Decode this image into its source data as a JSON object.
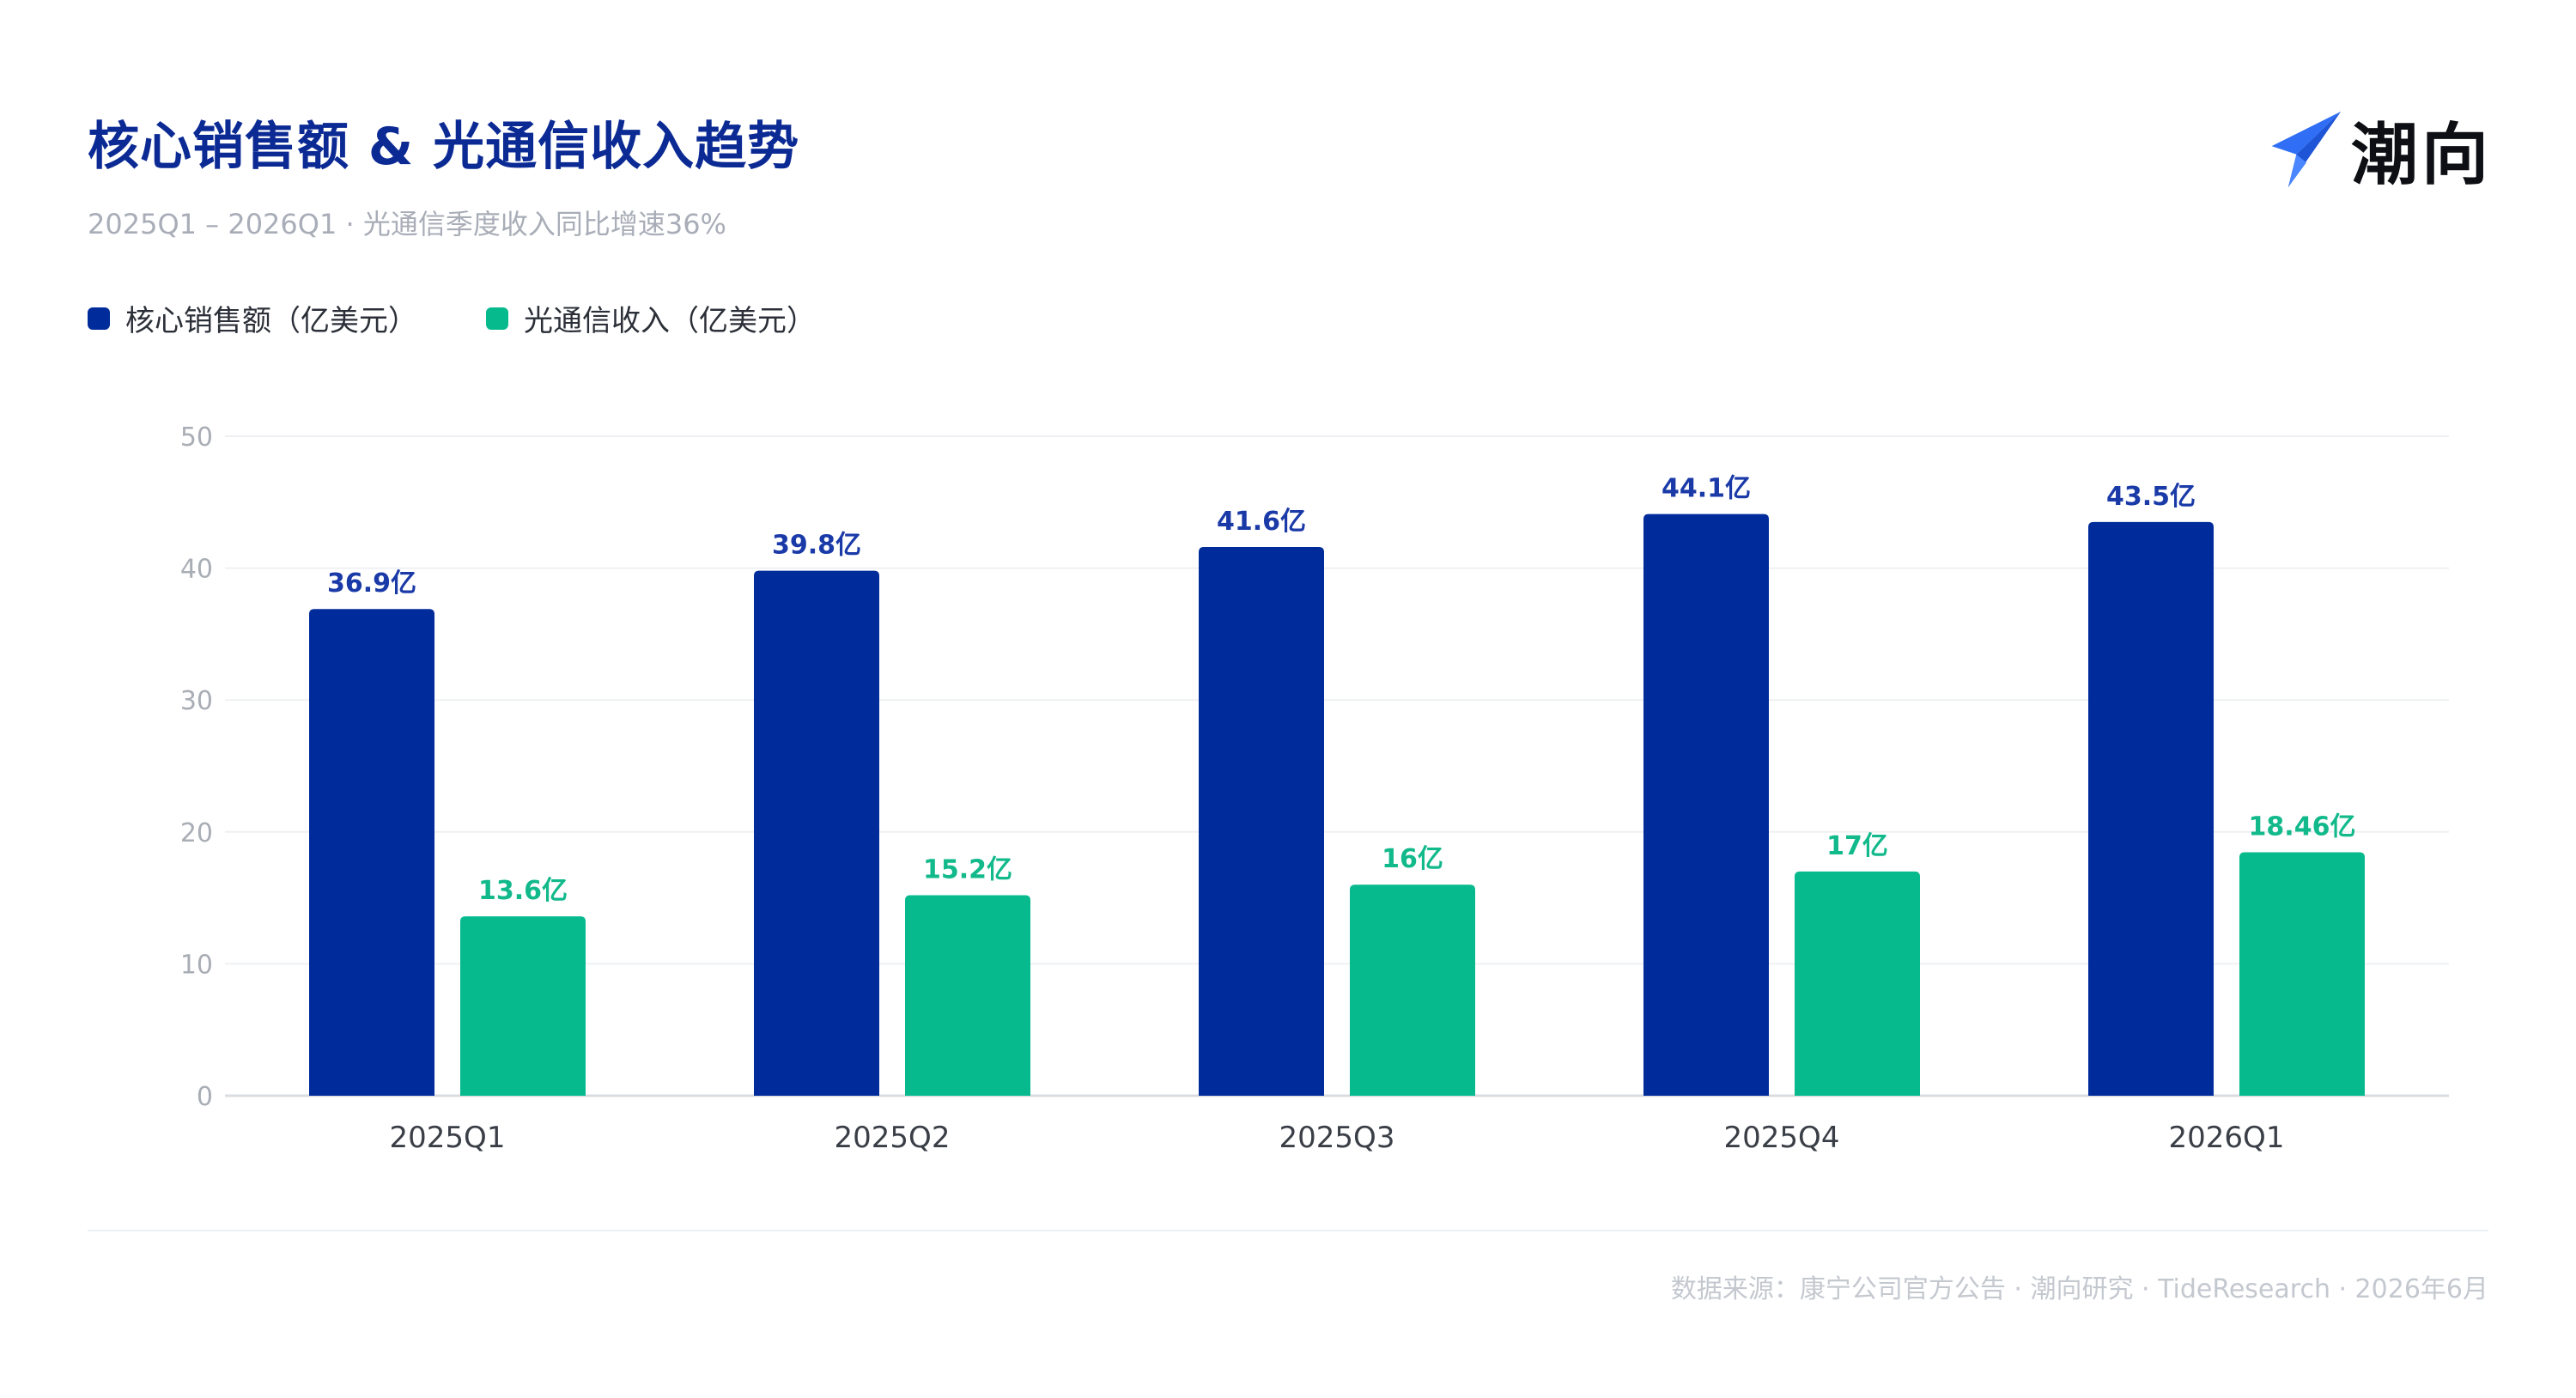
{
  "header": {
    "title": "核心销售额 & 光通信收入趋势",
    "subtitle": "2025Q1 – 2026Q1 · 光通信季度收入同比增速36%"
  },
  "logo": {
    "text": "潮向",
    "icon": "paper-plane-icon",
    "icon_color": "#2f6ef5"
  },
  "legend": [
    {
      "label": "核心销售额（亿美元）",
      "color": "#002b9a"
    },
    {
      "label": "光通信收入（亿美元）",
      "color": "#06ba8e"
    }
  ],
  "footer": {
    "source": "数据来源：康宁公司官方公告 · 潮向研究 · TideResearch · 2026年6月"
  },
  "chart_data": {
    "type": "bar",
    "categories": [
      "2025Q1",
      "2025Q2",
      "2025Q3",
      "2025Q4",
      "2026Q1"
    ],
    "series": [
      {
        "name": "核心销售额（亿美元）",
        "values": [
          36.9,
          39.8,
          41.6,
          44.1,
          43.5
        ],
        "labels": [
          "36.9亿",
          "39.8亿",
          "41.6亿",
          "44.1亿",
          "43.5亿"
        ],
        "color": "#002b9a",
        "label_color": "#1a3aa8"
      },
      {
        "name": "光通信收入（亿美元）",
        "values": [
          13.6,
          15.2,
          16,
          17,
          18.46
        ],
        "labels": [
          "13.6亿",
          "15.2亿",
          "16亿",
          "17亿",
          "18.46亿"
        ],
        "color": "#06ba8e",
        "label_color": "#12b98b"
      }
    ],
    "ylim": [
      0,
      50
    ],
    "yticks": [
      0,
      10,
      20,
      30,
      40,
      50
    ],
    "grid": true,
    "legend_position": "top-left"
  }
}
